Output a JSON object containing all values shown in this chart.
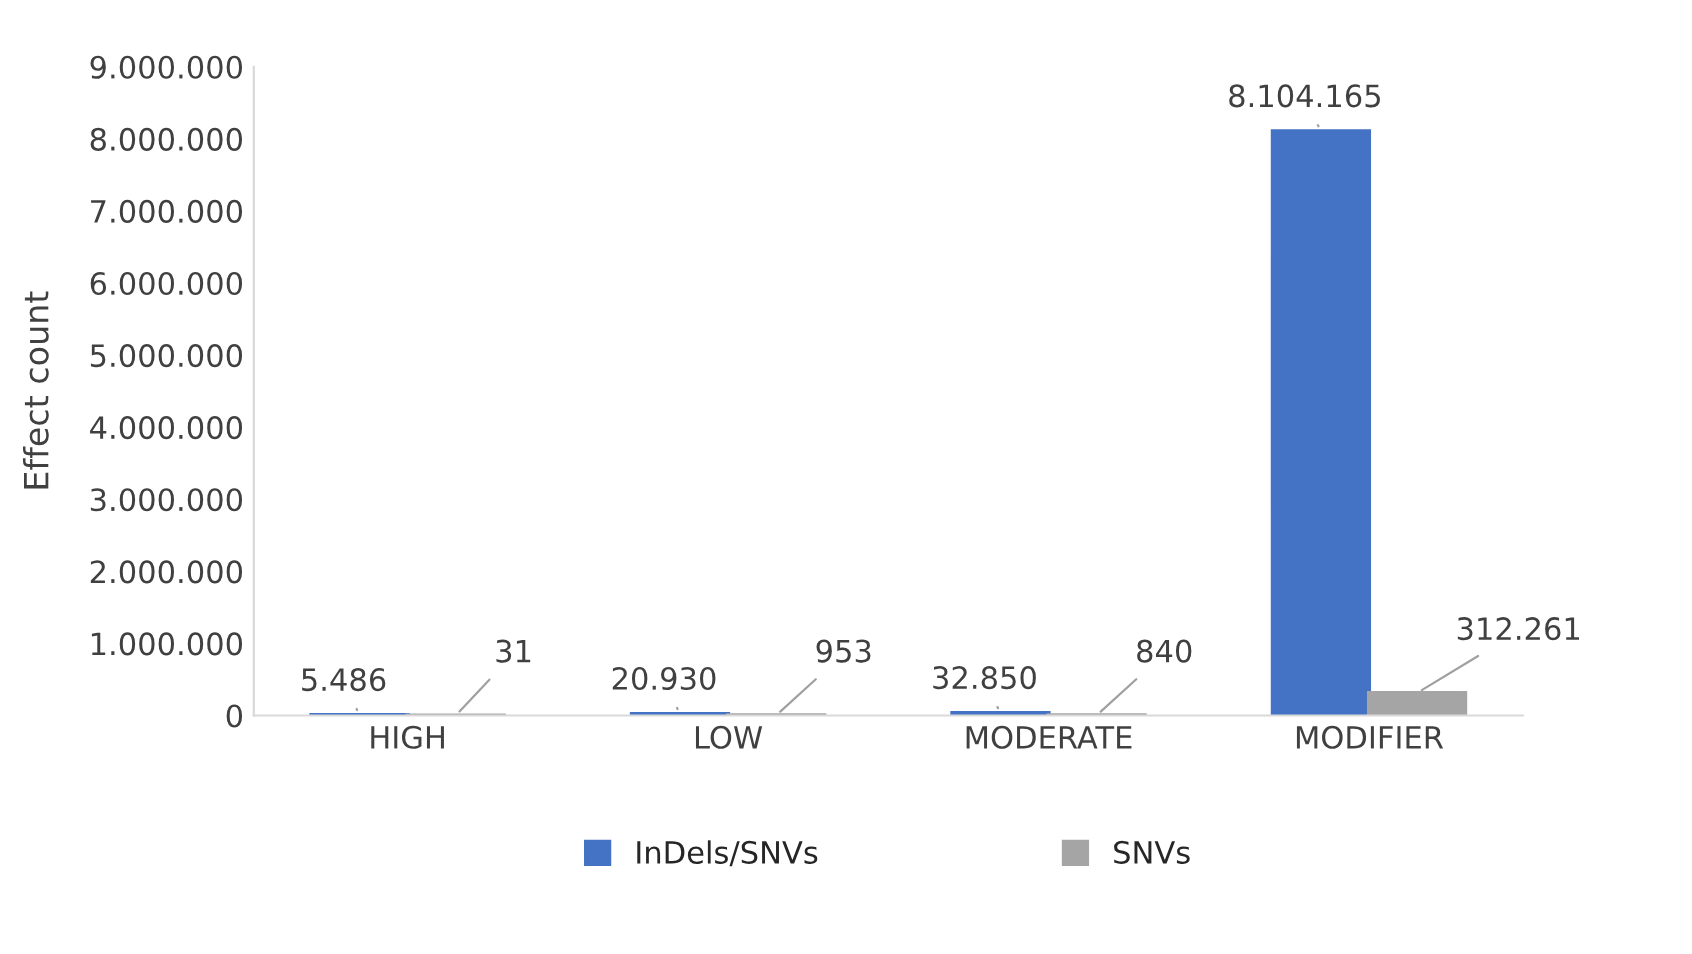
{
  "chart_data": {
    "type": "bar",
    "ylabel": "Effect count",
    "categories": [
      "HIGH",
      "LOW",
      "MODERATE",
      "MODIFIER"
    ],
    "series": [
      {
        "name": "InDels/SNVs",
        "color": "#4472c4",
        "values": [
          5486,
          20930,
          32850,
          8104165
        ],
        "value_labels": [
          "5.486",
          "20.930",
          "32.850",
          "8.104.165"
        ]
      },
      {
        "name": "SNVs",
        "color": "#a5a5a5",
        "values": [
          31,
          953,
          840,
          312261
        ],
        "value_labels": [
          "31",
          "953",
          "840",
          "312.261"
        ]
      }
    ],
    "ylim": [
      0,
      9000000
    ],
    "yticks": [
      {
        "value": 0,
        "label": "0"
      },
      {
        "value": 1000000,
        "label": "1.000.000"
      },
      {
        "value": 2000000,
        "label": "2.000.000"
      },
      {
        "value": 3000000,
        "label": "3.000.000"
      },
      {
        "value": 4000000,
        "label": "4.000.000"
      },
      {
        "value": 5000000,
        "label": "5.000.000"
      },
      {
        "value": 6000000,
        "label": "6.000.000"
      },
      {
        "value": 7000000,
        "label": "7.000.000"
      },
      {
        "value": 8000000,
        "label": "8.000.000"
      },
      {
        "value": 9000000,
        "label": "9.000.000"
      }
    ],
    "grid": false,
    "legend": "bottom"
  }
}
